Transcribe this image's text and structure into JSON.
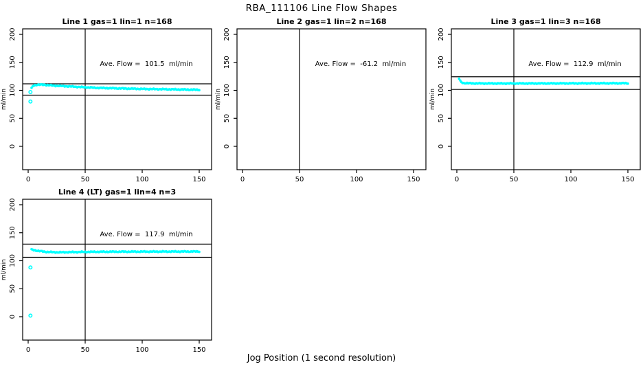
{
  "page": {
    "title": "RBA_111106  Line Flow Shapes",
    "xlabel": "Jog Position (1 second resolution)",
    "background": "#ffffff",
    "axis_color": "#000000",
    "point_color": "#00ffff"
  },
  "chart_data": [
    {
      "type": "scatter",
      "title": "Line 1 gas=1 lin=1 n=168",
      "annotation": "Ave. Flow =  101.5  ml/min",
      "ave_flow_ml_min": 101.5,
      "n": 168,
      "ylabel": "ml/min",
      "xlim": [
        0,
        150
      ],
      "ylim": [
        0,
        200
      ],
      "xticks": [
        0,
        50,
        100,
        150
      ],
      "yticks": [
        0,
        50,
        100,
        150,
        200
      ],
      "vline_x": 50,
      "hlines": [
        111.7,
        91.4
      ],
      "series_keypoints": [
        [
          3,
          104
        ],
        [
          4,
          107
        ],
        [
          5,
          109
        ],
        [
          8,
          110
        ],
        [
          14,
          110
        ],
        [
          22,
          108.5
        ],
        [
          32,
          107.5
        ],
        [
          45,
          106
        ],
        [
          60,
          104.5
        ],
        [
          80,
          103.5
        ],
        [
          100,
          102.5
        ],
        [
          120,
          102
        ],
        [
          135,
          101.5
        ],
        [
          150,
          101
        ]
      ],
      "outliers": [
        [
          2,
          97
        ],
        [
          2,
          80
        ]
      ]
    },
    {
      "type": "scatter",
      "title": "Line 2 gas=1 lin=2 n=168",
      "annotation": "Ave. Flow =  -61.2  ml/min",
      "ave_flow_ml_min": -61.2,
      "n": 168,
      "ylabel": "ml/min",
      "xlim": [
        0,
        150
      ],
      "ylim": [
        0,
        200
      ],
      "xticks": [
        0,
        50,
        100,
        150
      ],
      "yticks": [
        0,
        50,
        100,
        150,
        200
      ],
      "vline_x": 50,
      "hlines": [],
      "series_keypoints": [],
      "outliers": []
    },
    {
      "type": "scatter",
      "title": "Line 3 gas=1 lin=3 n=168",
      "annotation": "Ave. Flow =  112.9  ml/min",
      "ave_flow_ml_min": 112.9,
      "n": 168,
      "ylabel": "ml/min",
      "xlim": [
        0,
        150
      ],
      "ylim": [
        0,
        200
      ],
      "xticks": [
        0,
        50,
        100,
        150
      ],
      "yticks": [
        0,
        50,
        100,
        150,
        200
      ],
      "vline_x": 50,
      "hlines": [
        124.2,
        101.6
      ],
      "series_keypoints": [
        [
          2,
          121
        ],
        [
          3,
          117
        ],
        [
          4,
          114.5
        ],
        [
          6,
          113
        ],
        [
          15,
          112.4
        ],
        [
          40,
          112.3
        ],
        [
          80,
          112.4
        ],
        [
          120,
          112.6
        ],
        [
          150,
          112.7
        ]
      ],
      "outliers": []
    },
    {
      "type": "scatter",
      "title": "Line 4 (LT) gas=1 lin=4 n=3",
      "annotation": "Ave. Flow =  117.9  ml/min",
      "ave_flow_ml_min": 117.9,
      "n": 3,
      "ylabel": "ml/min",
      "xlim": [
        0,
        150
      ],
      "ylim": [
        0,
        200
      ],
      "xticks": [
        0,
        50,
        100,
        150
      ],
      "yticks": [
        0,
        50,
        100,
        150,
        200
      ],
      "vline_x": 50,
      "hlines": [
        129.7,
        106.1
      ],
      "series_keypoints": [
        [
          3,
          120
        ],
        [
          5,
          119
        ],
        [
          9,
          117.5
        ],
        [
          16,
          115.8
        ],
        [
          26,
          115
        ],
        [
          36,
          115.3
        ],
        [
          50,
          115.8
        ],
        [
          70,
          116.1
        ],
        [
          100,
          116.3
        ],
        [
          150,
          116.5
        ]
      ],
      "outliers": [
        [
          2,
          88
        ],
        [
          2,
          2
        ]
      ]
    }
  ]
}
